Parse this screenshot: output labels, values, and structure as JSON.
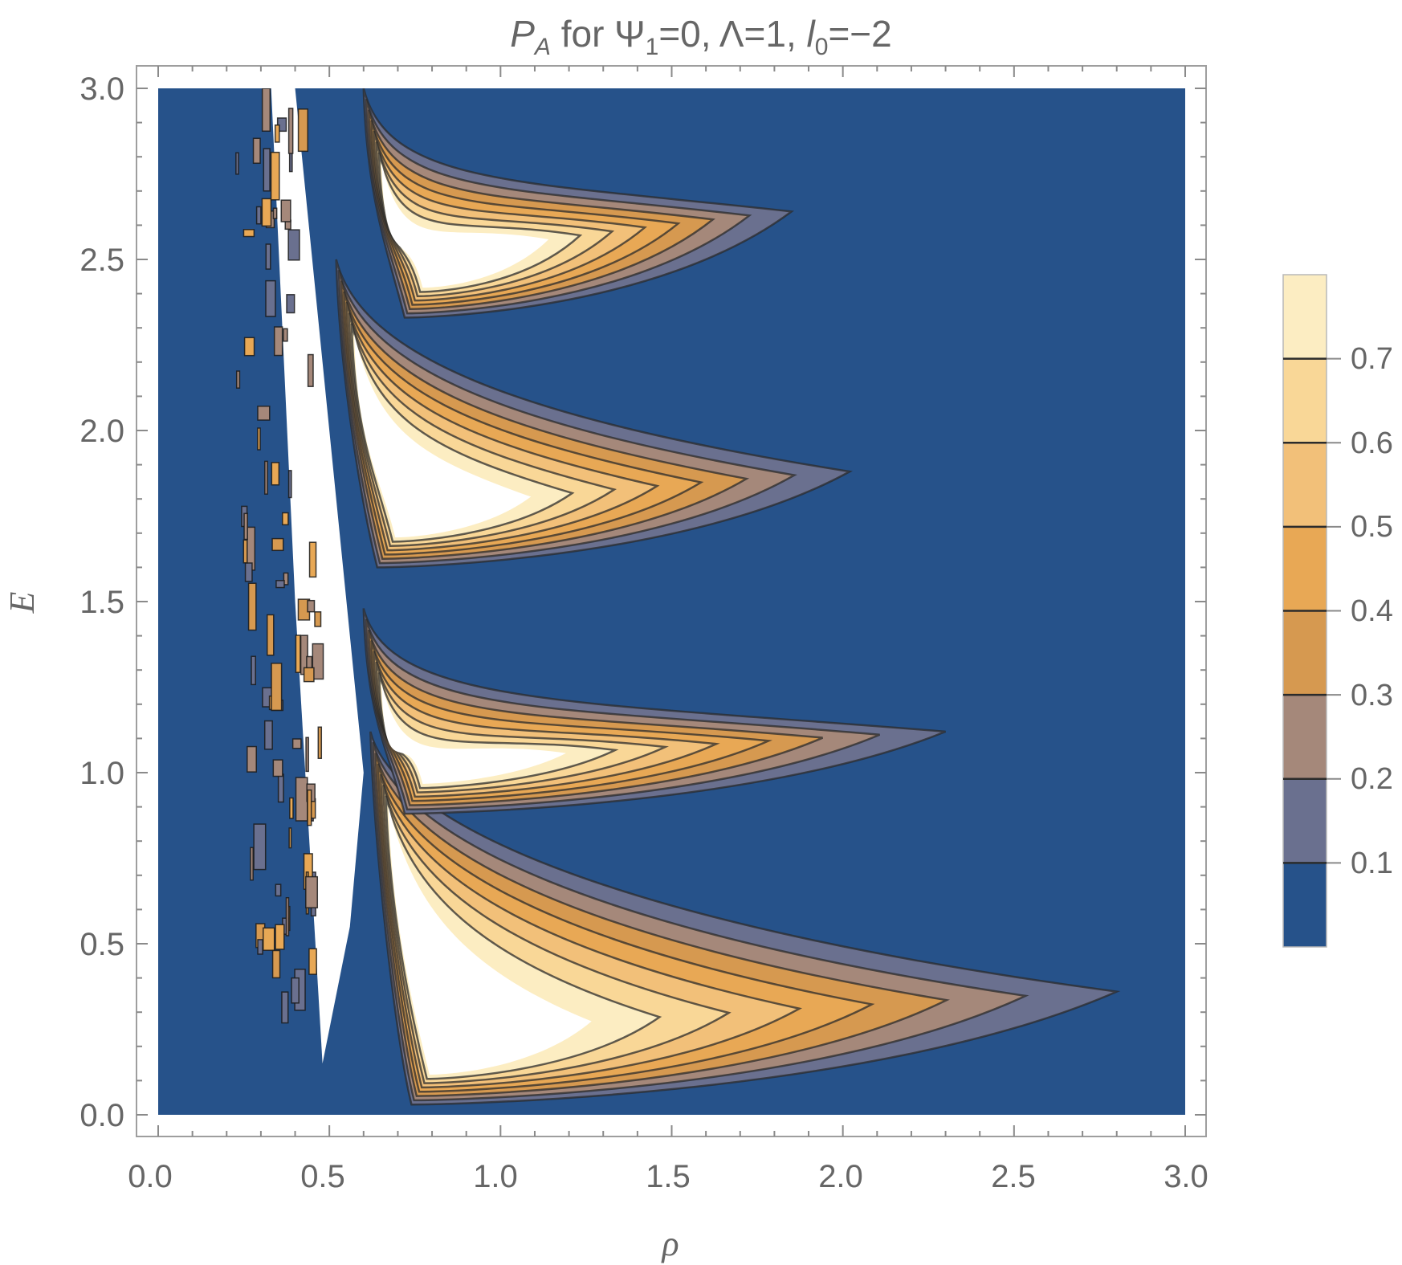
{
  "chart_data": {
    "type": "heatmap",
    "subtype": "contour",
    "title": {
      "symbol": "P",
      "symbol_sub": "A",
      "text_for": " for Ψ",
      "psi_sub": "1",
      "text_psi_val": "=0, Λ=1, ",
      "l_symbol": "l",
      "l_sub": "0",
      "text_l_val": "=−2"
    },
    "xlabel": "ρ",
    "ylabel": "E",
    "xlim": [
      0.0,
      3.0
    ],
    "ylim": [
      0.0,
      3.0
    ],
    "x_ticks": [
      "0.0",
      "0.5",
      "1.0",
      "1.5",
      "2.0",
      "2.5",
      "3.0"
    ],
    "y_ticks": [
      "0.0",
      "0.5",
      "1.0",
      "1.5",
      "2.0",
      "2.5",
      "3.0"
    ],
    "contour_levels": [
      0.1,
      0.2,
      0.3,
      0.4,
      0.5,
      0.6,
      0.7
    ],
    "legend_labels": [
      "0.1",
      "0.2",
      "0.3",
      "0.4",
      "0.5",
      "0.6",
      "0.7"
    ],
    "legend_range": [
      0.0,
      0.8
    ],
    "legend_position": "right",
    "fill_colors": [
      "#26528a",
      "#6a708f",
      "#a5887a",
      "#d69950",
      "#e8a855",
      "#f2c079",
      "#f9d797",
      "#fcedc2",
      "#ffffff"
    ],
    "background_color": "#26528a",
    "lobes": [
      {
        "apex_rho": 0.62,
        "apex_E": 1.12,
        "tip_rho": 2.8,
        "tip_E": 0.36,
        "bottom_E": 0.03,
        "white_core": true
      },
      {
        "apex_rho": 0.6,
        "apex_E": 1.48,
        "tip_rho": 2.3,
        "tip_E": 1.12,
        "bottom_E": 0.88,
        "white_core": true
      },
      {
        "apex_rho": 0.52,
        "apex_E": 2.5,
        "tip_rho": 2.02,
        "tip_E": 1.88,
        "bottom_E": 1.6,
        "white_core": true
      },
      {
        "apex_rho": 0.6,
        "apex_E": 3.0,
        "tip_rho": 1.85,
        "tip_E": 2.64,
        "bottom_E": 2.33,
        "white_core": true
      }
    ]
  }
}
